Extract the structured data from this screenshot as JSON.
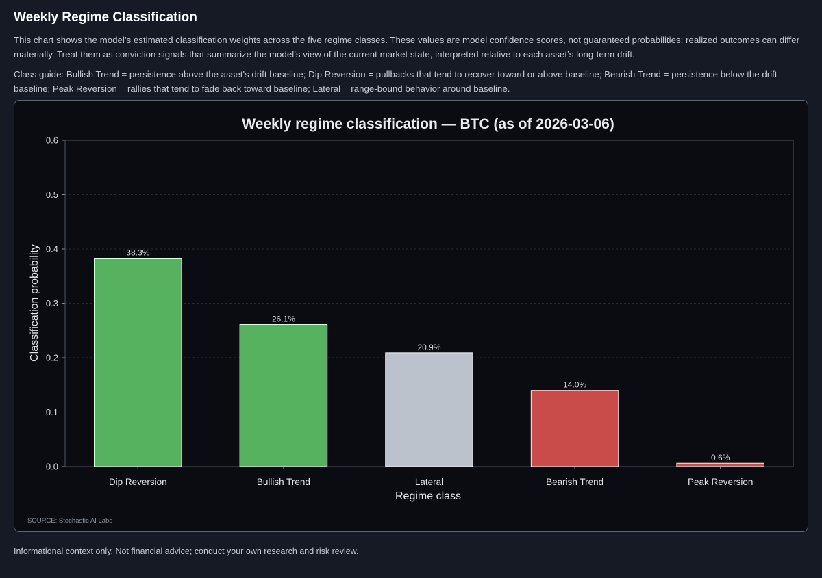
{
  "page": {
    "title": "Weekly Regime Classification",
    "description": "This chart shows the model’s estimated classification weights across the five regime classes. These values are model confidence scores, not guaranteed probabilities; realized outcomes can differ materially. Treat them as conviction signals that summarize the model’s view of the current market state, interpreted relative to each asset’s long-term drift.",
    "class_guide": "Class guide: Bullish Trend = persistence above the asset's drift baseline; Dip Reversion = pullbacks that tend to recover toward or above baseline; Bearish Trend = persistence below the drift baseline; Peak Reversion = rallies that tend to fade back toward baseline; Lateral = range-bound behavior around baseline.",
    "source": "SOURCE: Stochastic AI Labs",
    "footer": "Informational context only. Not financial advice; conduct your own research and risk review."
  },
  "chart_data": {
    "type": "bar",
    "title": "Weekly regime classification — BTC (as of 2026-03-06)",
    "xlabel": "Regime class",
    "ylabel": "Classification probability",
    "ylim": [
      0,
      0.6
    ],
    "yticks": [
      "0.0",
      "0.1",
      "0.2",
      "0.3",
      "0.4",
      "0.5",
      "0.6"
    ],
    "grid": true,
    "categories": [
      "Dip Reversion",
      "Bullish Trend",
      "Lateral",
      "Bearish Trend",
      "Peak Reversion"
    ],
    "values": [
      0.383,
      0.261,
      0.209,
      0.14,
      0.006
    ],
    "value_labels": [
      "38.3%",
      "26.1%",
      "20.9%",
      "14.0%",
      "0.6%"
    ],
    "colors": [
      "#57b25f",
      "#57b25f",
      "#bbc2cc",
      "#c94c4b",
      "#c94c4b"
    ]
  }
}
